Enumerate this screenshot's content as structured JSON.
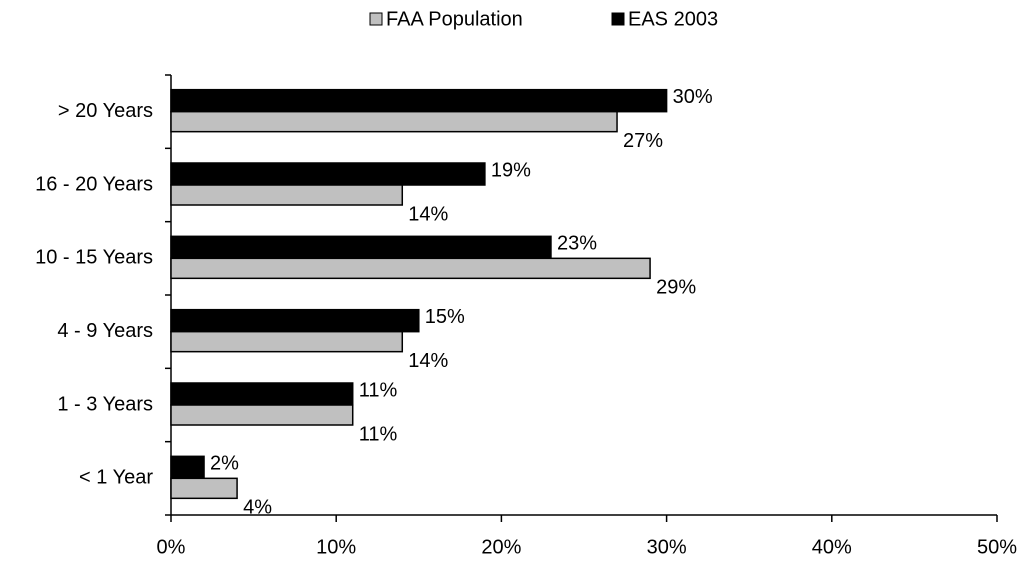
{
  "chart_data": {
    "type": "barh",
    "categories": [
      "> 20 Years",
      "16 - 20 Years",
      "10 - 15 Years",
      "4 - 9 Years",
      "1 - 3 Years",
      "< 1 Year"
    ],
    "series": [
      {
        "name": "FAA Population",
        "color": "#c0c0c0",
        "values": [
          27,
          14,
          29,
          14,
          11,
          4
        ],
        "value_labels": [
          "27%",
          "14%",
          "29%",
          "14%",
          "11%",
          "4%"
        ]
      },
      {
        "name": "EAS 2003",
        "color": "#000000",
        "values": [
          30,
          19,
          23,
          15,
          11,
          2
        ],
        "value_labels": [
          "30%",
          "19%",
          "23%",
          "15%",
          "11%",
          "2%"
        ]
      }
    ],
    "xlim": [
      0,
      50
    ],
    "xticks": [
      {
        "value": 0,
        "label": "0%"
      },
      {
        "value": 10,
        "label": "10%"
      },
      {
        "value": 20,
        "label": "20%"
      },
      {
        "value": 30,
        "label": "30%"
      },
      {
        "value": 40,
        "label": "40%"
      },
      {
        "value": 50,
        "label": "50%"
      }
    ],
    "legend": "top",
    "grid": false
  }
}
